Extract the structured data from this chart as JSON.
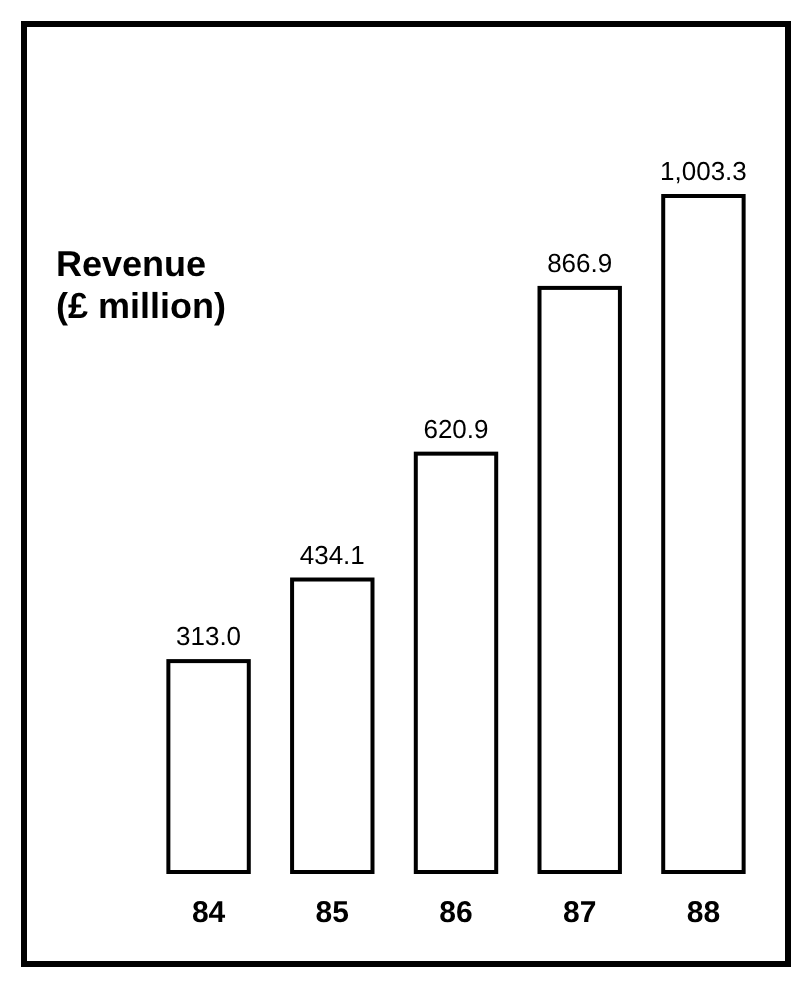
{
  "chart_data": {
    "type": "bar",
    "title": "Revenue\n(£ million)",
    "categories": [
      "84",
      "85",
      "86",
      "87",
      "88"
    ],
    "values": [
      313.0,
      434.1,
      620.9,
      866.9,
      1003.3
    ],
    "value_labels": [
      "313.0",
      "434.1",
      "620.9",
      "866.9",
      "1,003.3"
    ],
    "color": "#ffffff",
    "tick_labels": "x"
  }
}
